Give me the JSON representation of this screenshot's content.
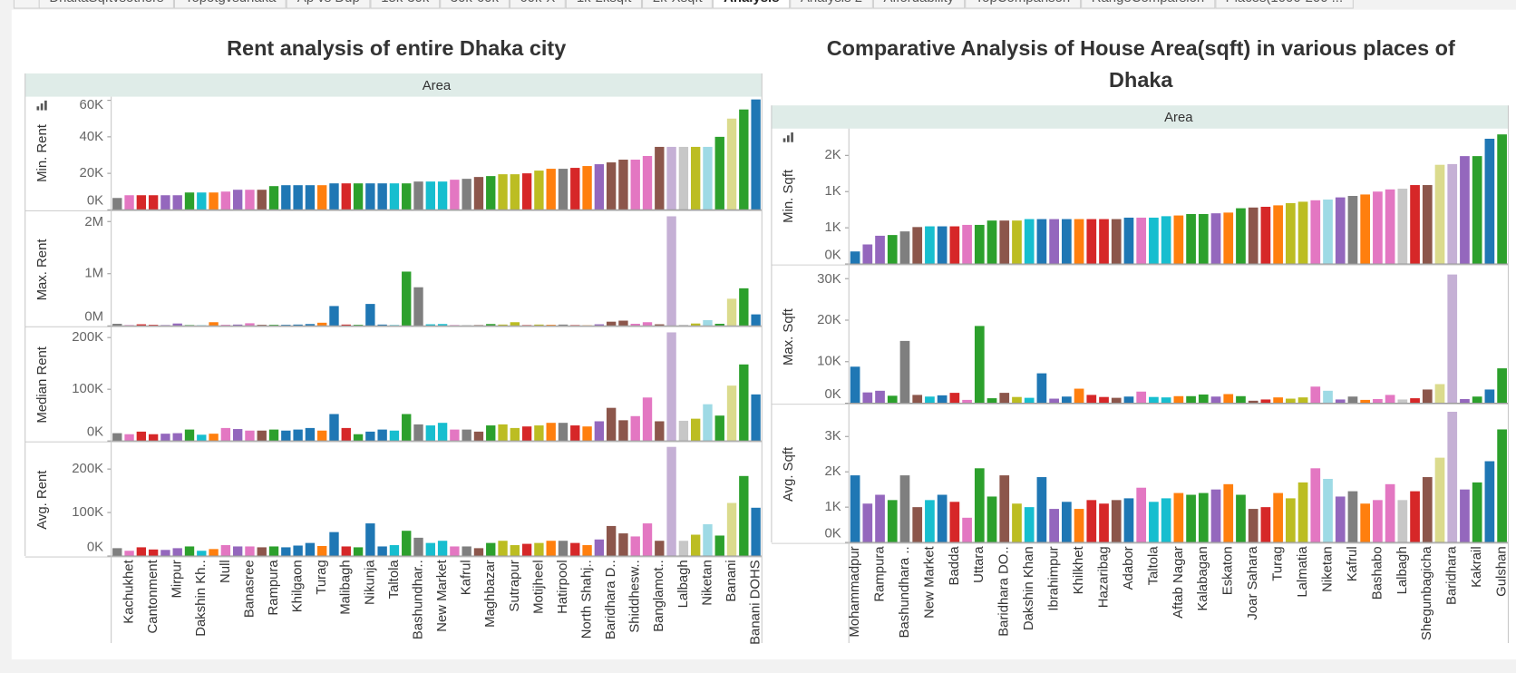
{
  "tabs": [
    "DhakaSqftvsothers",
    "Topotgvsdhaka",
    "Ap vs Dup",
    "15k-30k",
    "30k-60k",
    "60k-X",
    "1k-2ksqft",
    "2k-Xsqft",
    "Analysis",
    "Analysis 2",
    "Affordability",
    "TopComparison",
    "RangeComparsion",
    "Places(1000-200 ..."
  ],
  "active_tab": 8,
  "chart_data": [
    {
      "type": "bar",
      "title": "Rent analysis of entire Dhaka city",
      "column_header": "Area",
      "categories": [
        null,
        "Kachukhet",
        null,
        "Cantonment",
        null,
        "Mirpur",
        null,
        "Dakshin Kh..",
        null,
        "Null",
        null,
        "Banasree",
        null,
        "Rampura",
        null,
        "Khilgaon",
        null,
        "Turag",
        null,
        "Malibagh",
        null,
        "Nikunja",
        null,
        "Taltola",
        null,
        "Bashundhar..",
        null,
        "New Market",
        null,
        "Kafrul",
        null,
        "Maghbazar",
        null,
        "Sutrapur",
        null,
        "Motijheel",
        null,
        "Hatirpool",
        null,
        "North Shahj..",
        null,
        "Baridhara D..",
        null,
        "Shiddhesw..",
        null,
        "Banglamot..",
        null,
        "Lalbagh",
        null,
        "Niketan",
        null,
        "Banani",
        null,
        "Banani DOHS"
      ],
      "colors": [
        "#7f7f7f",
        "#e377c2",
        "#d62728",
        "#d62728",
        "#9467bd",
        "#9467bd",
        "#2ca02c",
        "#17becf",
        "#ff7f0e",
        "#e377c2",
        "#9467bd",
        "#e377c2",
        "#8c564b",
        "#2ca02c",
        "#1f77b4",
        "#1f77b4",
        "#1f77b4",
        "#ff7f0e",
        "#1f77b4",
        "#d62728",
        "#2ca02c",
        "#1f77b4",
        "#1f77b4",
        "#17becf",
        "#2ca02c",
        "#7f7f7f",
        "#17becf",
        "#17becf",
        "#e377c2",
        "#7f7f7f",
        "#8c564b",
        "#2ca02c",
        "#bcbd22",
        "#bcbd22",
        "#d62728",
        "#bcbd22",
        "#ff7f0e",
        "#7f7f7f",
        "#d62728",
        "#ff7f0e",
        "#9467bd",
        "#8c564b",
        "#8c564b",
        "#e377c2",
        "#e377c2",
        "#8c564b",
        "#c5b0d5",
        "#c7c7c7",
        "#bcbd22",
        "#9edae5",
        "#2ca02c",
        "#dbdb8d",
        "#2ca02c",
        "#1f77b4"
      ],
      "panels": [
        {
          "name": "Min. Rent",
          "ylim": [
            0,
            62000
          ],
          "yticks": [
            {
              "value": 0,
              "label": "0K"
            },
            {
              "value": 20000,
              "label": "20K"
            },
            {
              "value": 40000,
              "label": "40K"
            },
            {
              "value": 60000,
              "label": "60K"
            }
          ],
          "values": [
            6500,
            8000,
            8000,
            8000,
            8000,
            8000,
            9500,
            9500,
            9500,
            10000,
            11000,
            11000,
            11000,
            13000,
            13500,
            13500,
            13500,
            13500,
            14500,
            14500,
            14500,
            14500,
            14500,
            14500,
            14500,
            15500,
            15500,
            15500,
            16500,
            17000,
            18000,
            18500,
            19500,
            19500,
            20000,
            21500,
            22500,
            22500,
            23000,
            24000,
            25000,
            26000,
            27500,
            27500,
            29500,
            34500,
            34500,
            34500,
            34500,
            34500,
            40000,
            50000,
            55000,
            60500
          ]
        },
        {
          "name": "Max. Rent",
          "ylim": [
            0,
            2150000
          ],
          "yticks": [
            {
              "value": 0,
              "label": "0M"
            },
            {
              "value": 1000000,
              "label": "1M"
            },
            {
              "value": 2000000,
              "label": "2M"
            }
          ],
          "values": [
            40000,
            15000,
            30000,
            20000,
            15000,
            45000,
            15000,
            10000,
            70000,
            20000,
            25000,
            50000,
            20000,
            20000,
            20000,
            25000,
            35000,
            60000,
            380000,
            25000,
            20000,
            420000,
            25000,
            15000,
            1040000,
            740000,
            30000,
            35000,
            15000,
            10000,
            15000,
            35000,
            25000,
            70000,
            15000,
            25000,
            20000,
            25000,
            15000,
            10000,
            30000,
            80000,
            100000,
            40000,
            70000,
            30000,
            2100000,
            20000,
            45000,
            110000,
            40000,
            520000,
            720000,
            220000
          ]
        },
        {
          "name": "Median Rent",
          "ylim": [
            0,
            217000
          ],
          "yticks": [
            {
              "value": 0,
              "label": "0K"
            },
            {
              "value": 100000,
              "label": "100K"
            },
            {
              "value": 200000,
              "label": "200K"
            }
          ],
          "values": [
            15000,
            13000,
            18000,
            13000,
            14000,
            15000,
            22000,
            12000,
            14000,
            25000,
            23000,
            20000,
            20000,
            22000,
            20000,
            22000,
            25000,
            20000,
            52000,
            25000,
            13000,
            18000,
            22000,
            20000,
            52000,
            32000,
            30000,
            35000,
            22000,
            22000,
            18000,
            30000,
            32000,
            25000,
            28000,
            30000,
            35000,
            35000,
            30000,
            28000,
            38000,
            64000,
            40000,
            48000,
            84000,
            38000,
            210000,
            39000,
            43000,
            71000,
            49000,
            107000,
            148000,
            90000
          ]
        },
        {
          "name": "Avg. Rent",
          "ylim": [
            0,
            258000
          ],
          "yticks": [
            {
              "value": 0,
              "label": "0K"
            },
            {
              "value": 100000,
              "label": "100K"
            },
            {
              "value": 200000,
              "label": "200K"
            }
          ],
          "values": [
            18000,
            12000,
            20000,
            15000,
            14000,
            18000,
            22000,
            12000,
            16000,
            25000,
            22000,
            22000,
            20000,
            22000,
            20000,
            24000,
            30000,
            23000,
            55000,
            22000,
            20000,
            75000,
            22000,
            25000,
            58000,
            42000,
            30000,
            35000,
            22000,
            22000,
            18000,
            30000,
            35000,
            25000,
            28000,
            30000,
            35000,
            35000,
            30000,
            25000,
            38000,
            69000,
            52000,
            45000,
            75000,
            35000,
            251000,
            35000,
            49000,
            73000,
            47000,
            122000,
            184000,
            111000
          ]
        }
      ]
    },
    {
      "type": "bar",
      "title": "Comparative Analysis of House Area(sqft)  in various places of Dhaka",
      "column_header": "Area",
      "categories": [
        "Mohammadpur",
        null,
        "Rampura",
        null,
        "Bashundhara ..",
        null,
        "New Market",
        null,
        "Badda",
        null,
        "Uttara",
        null,
        "Baridhara DO..",
        null,
        "Dakshin Khan",
        null,
        "Ibrahimpur",
        null,
        "Khilkhet",
        null,
        "Hazaribag",
        null,
        "Adabor",
        null,
        "Taltola",
        null,
        "Aftab Nagar",
        null,
        "Kalabagan",
        null,
        "Eskaton",
        null,
        "Joar Sahara",
        null,
        "Turag",
        null,
        "Lalmatia",
        null,
        "Niketan",
        null,
        "Kafrul",
        null,
        "Bashabo",
        null,
        "Lalbagh",
        null,
        "Shegunbagicha",
        null,
        "Baridhara",
        null,
        "Kakrail",
        null,
        "Gulshan"
      ],
      "colors": [
        "#1f77b4",
        "#9467bd",
        "#9467bd",
        "#2ca02c",
        "#7f7f7f",
        "#8c564b",
        "#17becf",
        "#1f77b4",
        "#d62728",
        "#e377c2",
        "#2ca02c",
        "#2ca02c",
        "#8c564b",
        "#bcbd22",
        "#17becf",
        "#1f77b4",
        "#9467bd",
        "#1f77b4",
        "#ff7f0e",
        "#d62728",
        "#d62728",
        "#8c564b",
        "#1f77b4",
        "#e377c2",
        "#17becf",
        "#17becf",
        "#ff7f0e",
        "#2ca02c",
        "#2ca02c",
        "#9467bd",
        "#ff7f0e",
        "#2ca02c",
        "#8c564b",
        "#d62728",
        "#ff7f0e",
        "#bcbd22",
        "#bcbd22",
        "#e377c2",
        "#9edae5",
        "#9467bd",
        "#7f7f7f",
        "#ff7f0e",
        "#e377c2",
        "#e377c2",
        "#c7c7c7",
        "#d62728",
        "#8c564b",
        "#dbdb8d",
        "#c5b0d5",
        "#9467bd",
        "#2ca02c",
        "#1f77b4",
        "#2ca02c"
      ],
      "panels": [
        {
          "name": "Min. Sqft",
          "ylim": [
            0,
            1870
          ],
          "yticks": [
            {
              "value": 0,
              "label": "0K"
            },
            {
              "value": 500,
              "label": "1K"
            },
            {
              "value": 1000,
              "label": "1K"
            },
            {
              "value": 1500,
              "label": "2K"
            }
          ],
          "values": [
            173,
            270,
            390,
            400,
            450,
            510,
            520,
            520,
            520,
            540,
            540,
            600,
            600,
            600,
            620,
            620,
            620,
            620,
            620,
            620,
            620,
            620,
            640,
            640,
            640,
            660,
            670,
            690,
            690,
            700,
            710,
            770,
            780,
            790,
            810,
            840,
            860,
            880,
            890,
            920,
            940,
            960,
            1000,
            1030,
            1040,
            1090,
            1090,
            1370,
            1380,
            1490,
            1490,
            1730,
            1790
          ]
        },
        {
          "name": "Max. Sqft",
          "ylim": [
            0,
            31900
          ],
          "yticks": [
            {
              "value": 0,
              "label": "0K"
            },
            {
              "value": 10000,
              "label": "10K"
            },
            {
              "value": 20000,
              "label": "20K"
            },
            {
              "value": 30000,
              "label": "30K"
            }
          ],
          "values": [
            8800,
            2600,
            3000,
            1800,
            15000,
            2000,
            1600,
            1900,
            2500,
            800,
            18600,
            1200,
            2500,
            1500,
            1300,
            7200,
            1100,
            1600,
            3500,
            2000,
            1500,
            1300,
            1600,
            2800,
            1500,
            1400,
            1700,
            1700,
            2100,
            1600,
            2200,
            1700,
            600,
            900,
            1400,
            1100,
            1400,
            4000,
            3000,
            900,
            1600,
            800,
            1000,
            2000,
            900,
            1200,
            3300,
            4600,
            31000,
            1000,
            1600,
            3300,
            8400
          ]
        },
        {
          "name": "Avg. Sqft",
          "ylim": [
            0,
            3860
          ],
          "yticks": [
            {
              "value": 0,
              "label": "0K"
            },
            {
              "value": 1000,
              "label": "1K"
            },
            {
              "value": 2000,
              "label": "2K"
            },
            {
              "value": 3000,
              "label": "3K"
            }
          ],
          "values": [
            1900,
            1100,
            1350,
            1200,
            1900,
            1000,
            1200,
            1350,
            1150,
            700,
            2100,
            1300,
            1900,
            1100,
            1000,
            1850,
            950,
            1150,
            950,
            1200,
            1100,
            1200,
            1250,
            1550,
            1150,
            1250,
            1400,
            1350,
            1400,
            1500,
            1650,
            1350,
            950,
            1000,
            1400,
            1250,
            1700,
            2100,
            1800,
            1300,
            1450,
            1100,
            1200,
            1650,
            1200,
            1450,
            1850,
            2400,
            3700,
            1500,
            1700,
            2300,
            3200
          ]
        }
      ]
    }
  ]
}
